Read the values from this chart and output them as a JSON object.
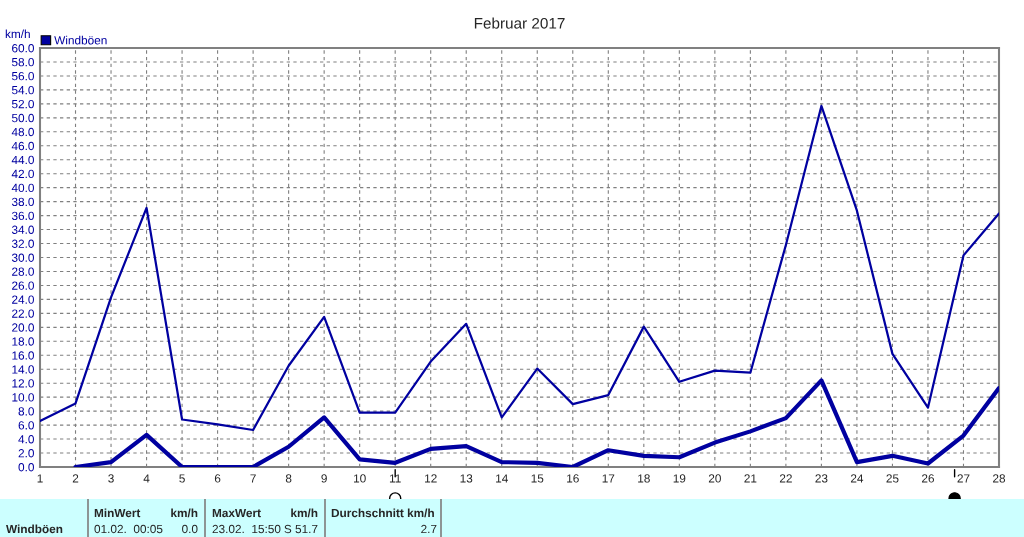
{
  "chart_data": {
    "type": "line",
    "title": "Februar 2017",
    "ylabel": "km/h",
    "x": [
      1,
      2,
      3,
      4,
      5,
      6,
      7,
      8,
      9,
      10,
      11,
      12,
      13,
      14,
      15,
      16,
      17,
      18,
      19,
      20,
      21,
      22,
      23,
      24,
      25,
      26,
      27,
      28
    ],
    "series": [
      {
        "name": "Windböen",
        "color": "#0000a0",
        "values": [
          6.6,
          9.1,
          24.3,
          37.1,
          6.8,
          6.1,
          5.3,
          14.5,
          21.5,
          7.8,
          7.8,
          15.1,
          20.5,
          7.1,
          14.1,
          9.0,
          10.3,
          20.1,
          12.2,
          13.8,
          13.5,
          31.8,
          51.7,
          36.7,
          16.2,
          8.5,
          30.3,
          36.3
        ]
      },
      {
        "color": "#0000a0",
        "values": [
          null,
          0.0,
          0.7,
          4.6,
          0.0,
          0.0,
          0.0,
          2.9,
          7.1,
          1.1,
          0.6,
          2.6,
          3.0,
          0.7,
          0.6,
          0.0,
          2.4,
          1.6,
          1.4,
          3.5,
          5.1,
          7.0,
          12.4,
          0.7,
          1.6,
          0.5,
          4.5,
          11.3
        ]
      }
    ],
    "xlim": [
      1,
      28
    ],
    "xticks": [
      1,
      2,
      3,
      4,
      5,
      6,
      7,
      8,
      9,
      10,
      11,
      12,
      13,
      14,
      15,
      16,
      17,
      18,
      19,
      20,
      21,
      22,
      23,
      24,
      25,
      26,
      27,
      28
    ],
    "ylim": [
      0,
      60
    ],
    "yticks": [
      {
        "value": 0,
        "label": "0.0"
      },
      {
        "value": 2,
        "label": "2.0"
      },
      {
        "value": 4,
        "label": "4.0"
      },
      {
        "value": 6,
        "label": "6.0"
      },
      {
        "value": 8,
        "label": "8.0"
      },
      {
        "value": 10,
        "label": "10.0"
      },
      {
        "value": 12,
        "label": "12.0"
      },
      {
        "value": 14,
        "label": "14.0"
      },
      {
        "value": 16,
        "label": "16.0"
      },
      {
        "value": 18,
        "label": "18.0"
      },
      {
        "value": 20,
        "label": "20.0"
      },
      {
        "value": 22,
        "label": "22.0"
      },
      {
        "value": 24,
        "label": "24.0"
      },
      {
        "value": 26,
        "label": "26.0"
      },
      {
        "value": 28,
        "label": "28.0"
      },
      {
        "value": 30,
        "label": "30.0"
      },
      {
        "value": 32,
        "label": "32.0"
      },
      {
        "value": 34,
        "label": "34.0"
      },
      {
        "value": 36,
        "label": "36.0"
      },
      {
        "value": 38,
        "label": "38.0"
      },
      {
        "value": 40,
        "label": "40.0"
      },
      {
        "value": 42,
        "label": "42.0"
      },
      {
        "value": 44,
        "label": "44.0"
      },
      {
        "value": 46,
        "label": "46.0"
      },
      {
        "value": 48,
        "label": "48.0"
      },
      {
        "value": 50,
        "label": "50.0"
      },
      {
        "value": 52,
        "label": "52.0"
      },
      {
        "value": 54,
        "label": "54.0"
      },
      {
        "value": 56,
        "label": "56.0"
      },
      {
        "value": 58,
        "label": "58.0"
      },
      {
        "value": 60,
        "label": "60.0"
      }
    ],
    "grid": true,
    "legend": "top left",
    "marker": "none",
    "line_style": "solid",
    "annotations": [
      "Windböen",
      "MinWert",
      "km/h",
      "01.02.  00:05",
      "0.0",
      "MaxWert",
      "km/h",
      "23.02.  15:50",
      "S 51.7",
      "Durchschnitt km/h",
      "2.7"
    ]
  }
}
